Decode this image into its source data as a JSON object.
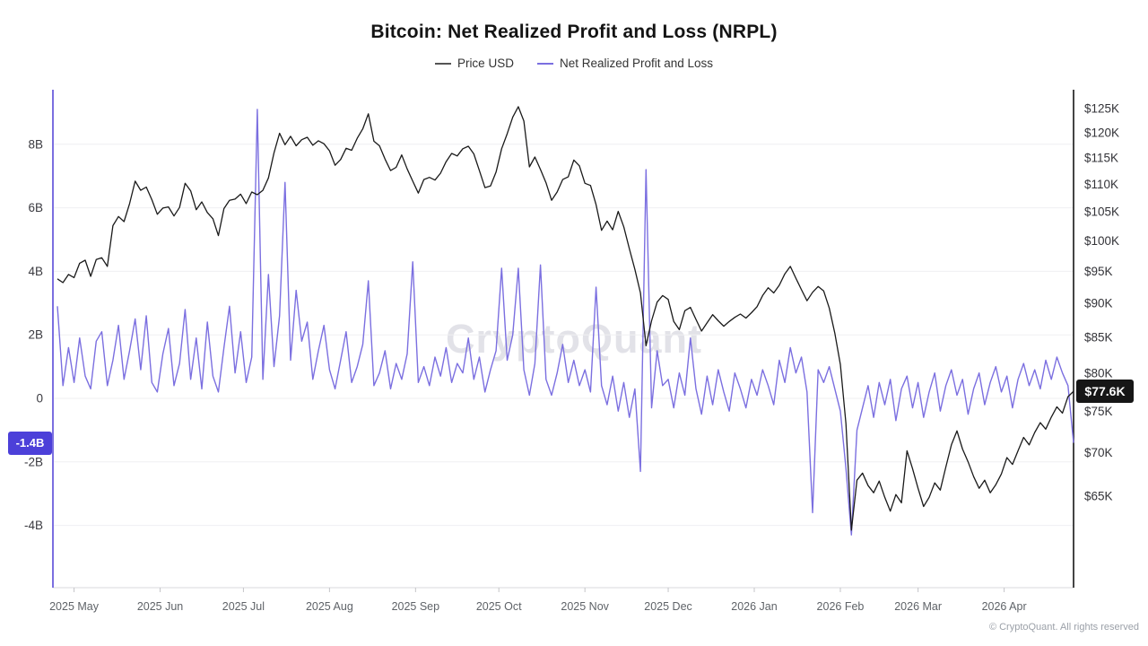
{
  "title": "Bitcoin: Net Realized Profit and Loss (NRPL)",
  "watermark": "CryptoQuant",
  "copyright": "© CryptoQuant. All rights reserved",
  "legend": [
    {
      "label": "Price USD",
      "color": "#555555"
    },
    {
      "label": "Net Realized Profit and Loss",
      "color": "#7b6fe0"
    }
  ],
  "chart_data": {
    "type": "line",
    "title": "Bitcoin: Net Realized Profit and Loss (NRPL)",
    "x_start_date": "2025-04-25",
    "x_end_date": "2026-04-26",
    "step_days": 2,
    "x_ticks": [
      {
        "label": "2025 May",
        "day": 6
      },
      {
        "label": "2025 Jun",
        "day": 37
      },
      {
        "label": "2025 Jul",
        "day": 67
      },
      {
        "label": "2025 Aug",
        "day": 98
      },
      {
        "label": "2025 Sep",
        "day": 129
      },
      {
        "label": "2025 Oct",
        "day": 159
      },
      {
        "label": "2025 Nov",
        "day": 190
      },
      {
        "label": "2025 Dec",
        "day": 220
      },
      {
        "label": "2026 Jan",
        "day": 251
      },
      {
        "label": "2026 Feb",
        "day": 282
      },
      {
        "label": "2026 Mar",
        "day": 310
      },
      {
        "label": "2026 Apr",
        "day": 341
      }
    ],
    "left_axis": {
      "name": "Net Realized Profit and Loss (billions USD)",
      "scale": "linear",
      "ticks": [
        {
          "label": "8B",
          "value": 8
        },
        {
          "label": "6B",
          "value": 6
        },
        {
          "label": "4B",
          "value": 4
        },
        {
          "label": "2B",
          "value": 2
        },
        {
          "label": "0",
          "value": 0
        },
        {
          "label": "-2B",
          "value": -2
        },
        {
          "label": "-4B",
          "value": -4
        }
      ],
      "current": {
        "label": "-1.4B",
        "value": -1.4
      },
      "axis_line_color": "#7b6fe0"
    },
    "right_axis": {
      "name": "Price USD",
      "scale": "log",
      "ticks": [
        {
          "label": "$125K",
          "value": 125
        },
        {
          "label": "$120K",
          "value": 120
        },
        {
          "label": "$115K",
          "value": 115
        },
        {
          "label": "$110K",
          "value": 110
        },
        {
          "label": "$105K",
          "value": 105
        },
        {
          "label": "$100K",
          "value": 100
        },
        {
          "label": "$95K",
          "value": 95
        },
        {
          "label": "$90K",
          "value": 90
        },
        {
          "label": "$85K",
          "value": 85
        },
        {
          "label": "$80K",
          "value": 80
        },
        {
          "label": "$75K",
          "value": 75
        },
        {
          "label": "$70K",
          "value": 70
        },
        {
          "label": "$65K",
          "value": 65
        }
      ],
      "current": {
        "label": "$77.6K",
        "value": 77.6
      },
      "axis_line_color": "#161616"
    },
    "series": [
      {
        "name": "Price USD",
        "axis": "right",
        "color": "#1a1a1a",
        "unit": "thousand USD",
        "values": [
          93.8,
          93.2,
          94.5,
          94.0,
          96.3,
          96.8,
          94.2,
          96.9,
          97.2,
          95.8,
          102.6,
          104.2,
          103.3,
          106.5,
          110.6,
          108.9,
          109.5,
          107.2,
          104.6,
          105.7,
          105.9,
          104.3,
          105.8,
          110.2,
          108.8,
          105.4,
          106.8,
          104.9,
          103.8,
          100.9,
          105.6,
          107.1,
          107.3,
          108.2,
          106.5,
          108.6,
          108.1,
          108.9,
          111.2,
          116.0,
          119.9,
          117.6,
          119.3,
          117.4,
          118.6,
          119.1,
          117.5,
          118.4,
          117.8,
          116.4,
          113.6,
          114.7,
          116.9,
          116.5,
          118.9,
          120.8,
          123.9,
          118.3,
          117.4,
          114.8,
          112.6,
          113.2,
          115.6,
          112.9,
          110.6,
          108.4,
          110.9,
          111.3,
          110.8,
          112.1,
          114.3,
          115.9,
          115.4,
          116.8,
          117.3,
          115.8,
          112.6,
          109.4,
          109.7,
          112.3,
          116.8,
          119.8,
          123.2,
          125.4,
          122.4,
          113.3,
          115.2,
          112.8,
          110.3,
          107.1,
          108.6,
          110.9,
          111.4,
          114.6,
          113.5,
          110.2,
          109.8,
          106.3,
          101.8,
          103.4,
          101.9,
          105.1,
          102.4,
          98.7,
          95.3,
          91.6,
          83.8,
          87.4,
          90.2,
          91.2,
          90.6,
          87.3,
          86.1,
          88.9,
          89.4,
          87.6,
          85.9,
          87.1,
          88.3,
          87.4,
          86.6,
          87.3,
          87.9,
          88.4,
          87.8,
          88.6,
          89.5,
          91.2,
          92.4,
          91.6,
          92.8,
          94.6,
          95.8,
          93.9,
          92.1,
          90.4,
          91.7,
          92.6,
          91.9,
          89.3,
          85.6,
          81.2,
          73.5,
          61.4,
          66.8,
          67.6,
          66.2,
          65.4,
          66.7,
          64.9,
          63.4,
          65.2,
          64.3,
          70.2,
          68.1,
          65.9,
          63.9,
          64.9,
          66.5,
          65.7,
          68.3,
          70.9,
          72.6,
          70.4,
          68.9,
          67.2,
          65.9,
          66.8,
          65.4,
          66.3,
          67.5,
          69.4,
          68.6,
          70.2,
          71.8,
          70.9,
          72.4,
          73.6,
          72.8,
          74.3,
          75.6,
          74.8,
          76.9,
          77.6
        ]
      },
      {
        "name": "Net Realized Profit and Loss",
        "axis": "left",
        "color": "#7b6fe0",
        "unit": "billion USD",
        "values": [
          2.9,
          0.4,
          1.6,
          0.5,
          1.9,
          0.7,
          0.3,
          1.8,
          2.1,
          0.4,
          1.2,
          2.3,
          0.6,
          1.5,
          2.5,
          0.9,
          2.6,
          0.5,
          0.2,
          1.4,
          2.2,
          0.4,
          1.1,
          2.8,
          0.6,
          1.9,
          0.3,
          2.4,
          0.7,
          0.2,
          1.6,
          2.9,
          0.8,
          2.1,
          0.5,
          1.3,
          9.1,
          0.6,
          3.9,
          1.0,
          2.6,
          6.8,
          1.2,
          3.4,
          1.8,
          2.4,
          0.6,
          1.5,
          2.3,
          0.9,
          0.3,
          1.2,
          2.1,
          0.5,
          1.0,
          1.7,
          3.7,
          0.4,
          0.8,
          1.5,
          0.3,
          1.1,
          0.6,
          1.4,
          4.3,
          0.5,
          1.0,
          0.4,
          1.3,
          0.7,
          1.6,
          0.5,
          1.1,
          0.8,
          1.9,
          0.6,
          1.3,
          0.2,
          0.9,
          1.5,
          4.1,
          1.2,
          2.0,
          4.1,
          0.9,
          0.1,
          1.1,
          4.2,
          0.6,
          0.1,
          0.8,
          1.7,
          0.5,
          1.2,
          0.4,
          0.9,
          0.2,
          3.5,
          0.4,
          -0.2,
          0.7,
          -0.4,
          0.5,
          -0.6,
          0.3,
          -2.3,
          7.2,
          -0.3,
          1.5,
          0.4,
          0.6,
          -0.3,
          0.8,
          0.1,
          1.9,
          0.3,
          -0.5,
          0.7,
          -0.2,
          0.9,
          0.2,
          -0.4,
          0.8,
          0.3,
          -0.3,
          0.6,
          0.1,
          0.9,
          0.4,
          -0.2,
          1.2,
          0.5,
          1.6,
          0.8,
          1.3,
          0.2,
          -3.6,
          0.9,
          0.5,
          1.0,
          0.3,
          -0.4,
          -2.2,
          -4.3,
          -1.0,
          -0.3,
          0.4,
          -0.6,
          0.5,
          -0.2,
          0.6,
          -0.7,
          0.3,
          0.7,
          -0.3,
          0.5,
          -0.6,
          0.2,
          0.8,
          -0.4,
          0.4,
          0.9,
          0.1,
          0.6,
          -0.5,
          0.3,
          0.8,
          -0.2,
          0.5,
          1.0,
          0.2,
          0.7,
          -0.3,
          0.6,
          1.1,
          0.4,
          0.9,
          0.3,
          1.2,
          0.6,
          1.3,
          0.8,
          0.4,
          -1.4
        ]
      }
    ],
    "grid": true,
    "legend_position": "top"
  }
}
